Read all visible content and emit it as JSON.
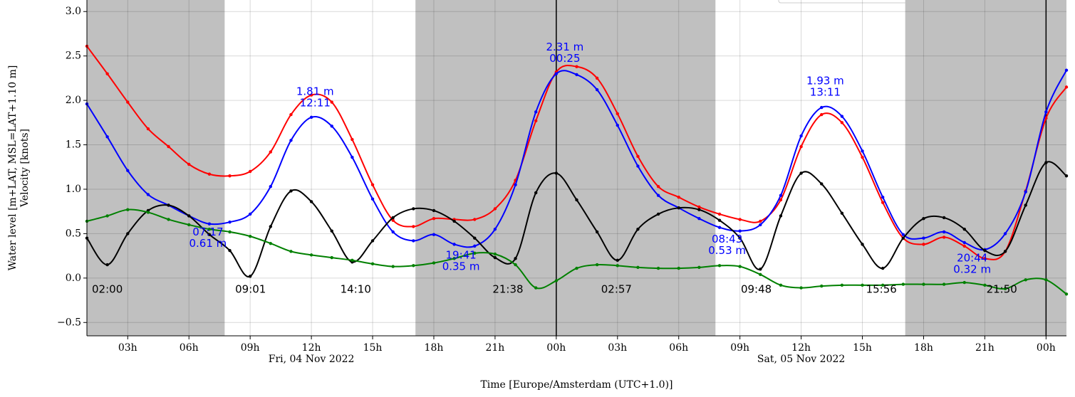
{
  "chart_data": {
    "type": "line",
    "xlabel": "Time [Europe/Amsterdam (UTC+1.0)]",
    "ylabel": [
      "Water level [m+LAT, MSL=LAT+1.10 m]",
      "Velocity [knots]"
    ],
    "x": [
      1,
      2,
      3,
      4,
      5,
      6,
      7,
      8,
      9,
      10,
      11,
      12,
      13,
      14,
      15,
      16,
      17,
      18,
      19,
      20,
      21,
      22,
      23,
      24,
      25,
      26,
      27,
      28,
      29,
      30,
      31,
      32,
      33,
      34,
      35,
      36,
      37,
      38,
      39,
      40,
      41,
      42,
      43,
      44,
      45,
      46,
      47,
      48,
      49
    ],
    "xlim": [
      1.0,
      49.0
    ],
    "xticks": [
      {
        "value": 3,
        "label": "03h"
      },
      {
        "value": 6,
        "label": "06h"
      },
      {
        "value": 9,
        "label": "09h"
      },
      {
        "value": 12,
        "label": "12h"
      },
      {
        "value": 15,
        "label": "15h"
      },
      {
        "value": 18,
        "label": "18h"
      },
      {
        "value": 21,
        "label": "21h"
      },
      {
        "value": 24,
        "label": "00h"
      },
      {
        "value": 27,
        "label": "03h"
      },
      {
        "value": 30,
        "label": "06h"
      },
      {
        "value": 33,
        "label": "09h"
      },
      {
        "value": 36,
        "label": "12h"
      },
      {
        "value": 39,
        "label": "15h"
      },
      {
        "value": 42,
        "label": "18h"
      },
      {
        "value": 45,
        "label": "21h"
      },
      {
        "value": 48,
        "label": "00h"
      }
    ],
    "date_labels": [
      {
        "value": 12,
        "label": "Fri, 04 Nov 2022"
      },
      {
        "value": 36,
        "label": "Sat, 05 Nov 2022"
      }
    ],
    "ylim": [
      -0.65,
      3.13
    ],
    "yticks": [
      {
        "value": -0.5,
        "label": "−0.5"
      },
      {
        "value": 0,
        "label": "0.0"
      },
      0.5,
      {
        "value": 1,
        "label": "1.0"
      },
      1.5,
      {
        "value": 2,
        "label": "2.0"
      },
      2.5,
      {
        "value": 3,
        "label": "3.0"
      }
    ],
    "grid": true,
    "night_spans": [
      [
        1.0,
        7.75
      ],
      [
        17.1,
        31.8
      ],
      [
        41.1,
        49.0
      ]
    ],
    "night_color": "#c0c0c0",
    "midnight_lines": [
      24,
      48
    ],
    "series": [
      {
        "color": "#ff0000",
        "values": [
          2.61,
          2.3,
          1.98,
          1.68,
          1.48,
          1.28,
          1.17,
          1.15,
          1.2,
          1.42,
          1.84,
          2.06,
          1.98,
          1.56,
          1.05,
          0.65,
          0.58,
          0.67,
          0.66,
          0.66,
          0.78,
          1.1,
          1.77,
          2.32,
          2.38,
          2.25,
          1.85,
          1.37,
          1.03,
          0.91,
          0.8,
          0.72,
          0.66,
          0.64,
          0.88,
          1.48,
          1.84,
          1.75,
          1.36,
          0.85,
          0.45,
          0.38,
          0.46,
          0.36,
          0.22,
          0.3,
          0.98,
          1.8,
          2.15
        ]
      },
      {
        "color": "#0000ff",
        "values": [
          1.96,
          1.59,
          1.21,
          0.94,
          0.82,
          0.7,
          0.61,
          0.63,
          0.72,
          1.03,
          1.55,
          1.81,
          1.71,
          1.36,
          0.89,
          0.52,
          0.42,
          0.49,
          0.38,
          0.36,
          0.55,
          1.05,
          1.87,
          2.3,
          2.29,
          2.12,
          1.72,
          1.26,
          0.93,
          0.79,
          0.67,
          0.57,
          0.53,
          0.6,
          0.93,
          1.6,
          1.92,
          1.82,
          1.43,
          0.91,
          0.49,
          0.45,
          0.52,
          0.4,
          0.32,
          0.5,
          0.97,
          1.87,
          2.34
        ]
      },
      {
        "color": "#000000",
        "values": [
          0.45,
          0.15,
          0.5,
          0.76,
          0.82,
          0.7,
          0.49,
          0.31,
          0.02,
          0.58,
          0.98,
          0.86,
          0.53,
          0.18,
          0.42,
          0.68,
          0.78,
          0.76,
          0.64,
          0.45,
          0.23,
          0.22,
          0.96,
          1.18,
          0.88,
          0.52,
          0.2,
          0.55,
          0.72,
          0.79,
          0.77,
          0.65,
          0.45,
          0.1,
          0.7,
          1.18,
          1.06,
          0.73,
          0.38,
          0.11,
          0.45,
          0.67,
          0.68,
          0.55,
          0.31,
          0.3,
          0.82,
          1.3,
          1.15
        ]
      },
      {
        "color": "#008000",
        "values": [
          0.64,
          0.7,
          0.77,
          0.74,
          0.66,
          0.6,
          0.55,
          0.52,
          0.47,
          0.39,
          0.3,
          0.26,
          0.23,
          0.2,
          0.16,
          0.13,
          0.14,
          0.17,
          0.22,
          0.28,
          0.27,
          0.15,
          -0.11,
          -0.03,
          0.11,
          0.15,
          0.14,
          0.12,
          0.11,
          0.11,
          0.12,
          0.14,
          0.13,
          0.04,
          -0.08,
          -0.11,
          -0.09,
          -0.08,
          -0.08,
          -0.08,
          -0.07,
          -0.07,
          -0.07,
          -0.05,
          -0.08,
          -0.12,
          -0.02,
          -0.02,
          -0.18
        ]
      }
    ],
    "tide_annotations": [
      {
        "lines": [
          "2.31 m",
          "00:25"
        ],
        "x": 24.42,
        "y": 2.31,
        "side": "above"
      },
      {
        "lines": [
          "1.81 m",
          "12:11"
        ],
        "x": 12.18,
        "y": 1.81,
        "side": "above"
      },
      {
        "lines": [
          "1.93 m",
          "13:11"
        ],
        "x": 37.18,
        "y": 1.93,
        "side": "above"
      },
      {
        "lines": [
          "07:17",
          "0.61 m"
        ],
        "x": 7.28,
        "y": 0.61,
        "side": "below"
      },
      {
        "lines": [
          "19:41",
          "0.35 m"
        ],
        "x": 19.68,
        "y": 0.35,
        "side": "below"
      },
      {
        "lines": [
          "08:43",
          "0.53 m"
        ],
        "x": 32.72,
        "y": 0.53,
        "side": "below"
      },
      {
        "lines": [
          "20:44",
          "0.32 m"
        ],
        "x": 44.73,
        "y": 0.32,
        "side": "below"
      }
    ],
    "annotation_color": "#0000ff",
    "slack_labels": [
      {
        "text": "02:00",
        "x": 2.0
      },
      {
        "text": "09:01",
        "x": 9.02
      },
      {
        "text": "14:10",
        "x": 14.17
      },
      {
        "text": "21:38",
        "x": 21.63
      },
      {
        "text": "02:57",
        "x": 26.95
      },
      {
        "text": "09:48",
        "x": 33.8
      },
      {
        "text": "15:56",
        "x": 39.93
      },
      {
        "text": "21:50",
        "x": 45.83
      }
    ]
  }
}
